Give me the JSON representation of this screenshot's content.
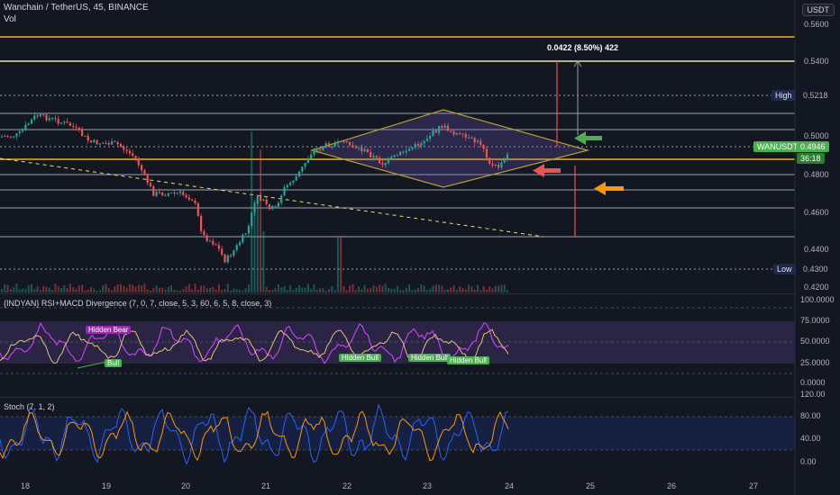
{
  "header": {
    "symbol_line": "Wanchain / TetherUS, 45, BINANCE",
    "vol_label": "Vol"
  },
  "currency_button": "USDT",
  "price_axis": [
    "0.5600",
    "0.5400",
    "0.5000",
    "0.4800",
    "0.4600",
    "0.4400",
    "0.4200"
  ],
  "high": {
    "label": "High",
    "value": "0.5218"
  },
  "low": {
    "label": "Low",
    "value": "0.4300"
  },
  "current": {
    "symbol": "WANUSDT",
    "value": "0.4946",
    "countdown": "36:18"
  },
  "measure_label": "0.0422 (8.50%) 422",
  "rsi_panel": {
    "title": "{INDYAN} RSI+MACD Divergence (7, 0, 7, close, 5, 3, 60, 6, 5, 8, close, 3)",
    "axis": [
      "100.0000",
      "75.0000",
      "50.0000",
      "25.0000",
      "0.0000"
    ],
    "badges": [
      {
        "text": "Hidden Bear",
        "kind": "bear"
      },
      {
        "text": "Bull",
        "kind": "bull"
      },
      {
        "text": "Hidden Bull",
        "kind": "bull"
      },
      {
        "text": "Hidden Bull",
        "kind": "bull"
      },
      {
        "text": "Hidden Bull",
        "kind": "bull"
      }
    ]
  },
  "stoch_panel": {
    "title": "Stoch (7, 1, 2)",
    "axis": [
      "120.00",
      "80.00",
      "40.00",
      "0.00"
    ]
  },
  "time_axis": [
    "18",
    "19",
    "20",
    "21",
    "22",
    "23",
    "24",
    "25",
    "26",
    "27"
  ],
  "colors": {
    "background": "#131722",
    "up": "#26a69a",
    "down": "#ef5350",
    "resistance": "#f0b90b",
    "rsi_purple": "#9c27b0",
    "stoch_blue": "#2962ff",
    "stoch_orange": "#ff9800"
  }
}
